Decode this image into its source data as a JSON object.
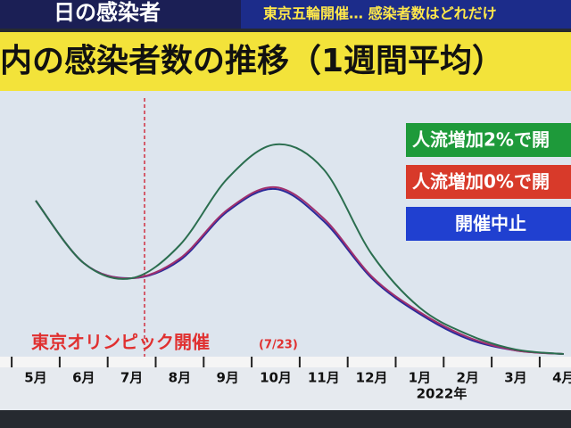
{
  "banner_left": "日の感染者",
  "banner_right": "東京五輪開催… 感染者数はどれだけ",
  "chart_data": {
    "type": "line",
    "title": "内の感染者数の推移（1週間平均）",
    "categories": [
      "5月",
      "6月",
      "7月",
      "8月",
      "9月",
      "10月",
      "11月",
      "12月",
      "1月",
      "2月",
      "3月",
      "4月"
    ],
    "x_axis_year": "2022年",
    "annotation": "東京オリンピック開催",
    "annotation_date": "(7/23)",
    "series": [
      {
        "name": "人流増加2%で開",
        "color": "#2b6e4f",
        "legend_color": "#1e9a3a",
        "values": [
          173,
          103,
          86,
          123,
          198,
          236,
          208,
          113,
          53,
          23,
          6,
          1
        ]
      },
      {
        "name": "人流増加0%で開",
        "color": "#a0306e",
        "legend_color": "#d83a2a",
        "values": [
          173,
          103,
          86,
          108,
          163,
          188,
          153,
          88,
          48,
          20,
          5,
          1
        ]
      },
      {
        "name": "開催中止",
        "color": "#2a2a9a",
        "legend_color": "#2040d0",
        "values": [
          173,
          103,
          86,
          106,
          161,
          186,
          150,
          86,
          46,
          18,
          5,
          1
        ]
      }
    ]
  }
}
